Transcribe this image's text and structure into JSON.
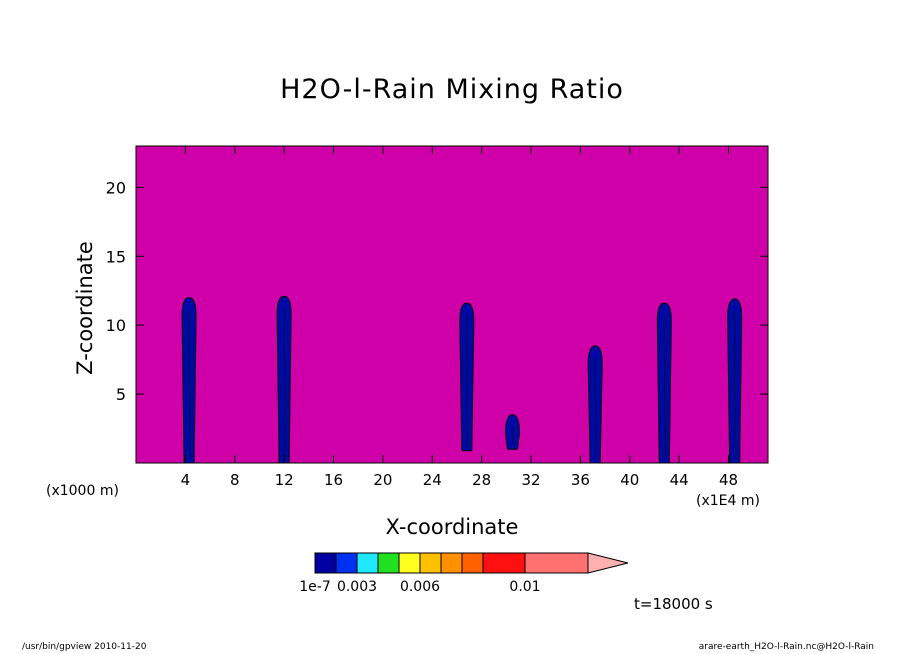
{
  "chart_data": {
    "type": "heatmap",
    "title": "H2O-l-Rain Mixing Ratio",
    "xlabel": "X-coordinate",
    "ylabel": "Z-coordinate",
    "x_unit_label": "(x1000 m)",
    "x_unit_label_right": "(x1E4 m)",
    "x_ticks": [
      4,
      8,
      12,
      16,
      20,
      24,
      28,
      32,
      36,
      40,
      44,
      48
    ],
    "y_ticks": [
      5,
      10,
      15,
      20
    ],
    "xlim": [
      0,
      51.2
    ],
    "ylim": [
      0,
      23
    ],
    "background_level": "below 1e-7",
    "background_color": "#d000a8",
    "colorbar": {
      "colors": [
        "#0000a0",
        "#0030f0",
        "#20e8ff",
        "#20e020",
        "#ffff20",
        "#ffc000",
        "#ff9000",
        "#ff6000",
        "#ff1010",
        "#ff7070",
        "#ffb0b0"
      ],
      "tick_labels": [
        "1e-7",
        "0.003",
        "0.006",
        "0.01"
      ],
      "extend": "max"
    },
    "rain_columns": [
      {
        "x": 4.3,
        "top": 12.0,
        "bottom": 0.0
      },
      {
        "x": 12.0,
        "top": 12.1,
        "bottom": 0.0
      },
      {
        "x": 26.8,
        "top": 11.6,
        "bottom": 0.9
      },
      {
        "x": 30.5,
        "top": 3.5,
        "bottom": 1.0
      },
      {
        "x": 37.2,
        "top": 8.5,
        "bottom": 0.0
      },
      {
        "x": 42.8,
        "top": 11.6,
        "bottom": 0.0
      },
      {
        "x": 48.5,
        "top": 11.9,
        "bottom": 0.0
      }
    ]
  },
  "time_label": "t=18000 s",
  "footer": {
    "left": "/usr/bin/gpview   2010-11-20",
    "right": "arare-earth_H2O-l-Rain.nc@H2O-l-Rain"
  }
}
